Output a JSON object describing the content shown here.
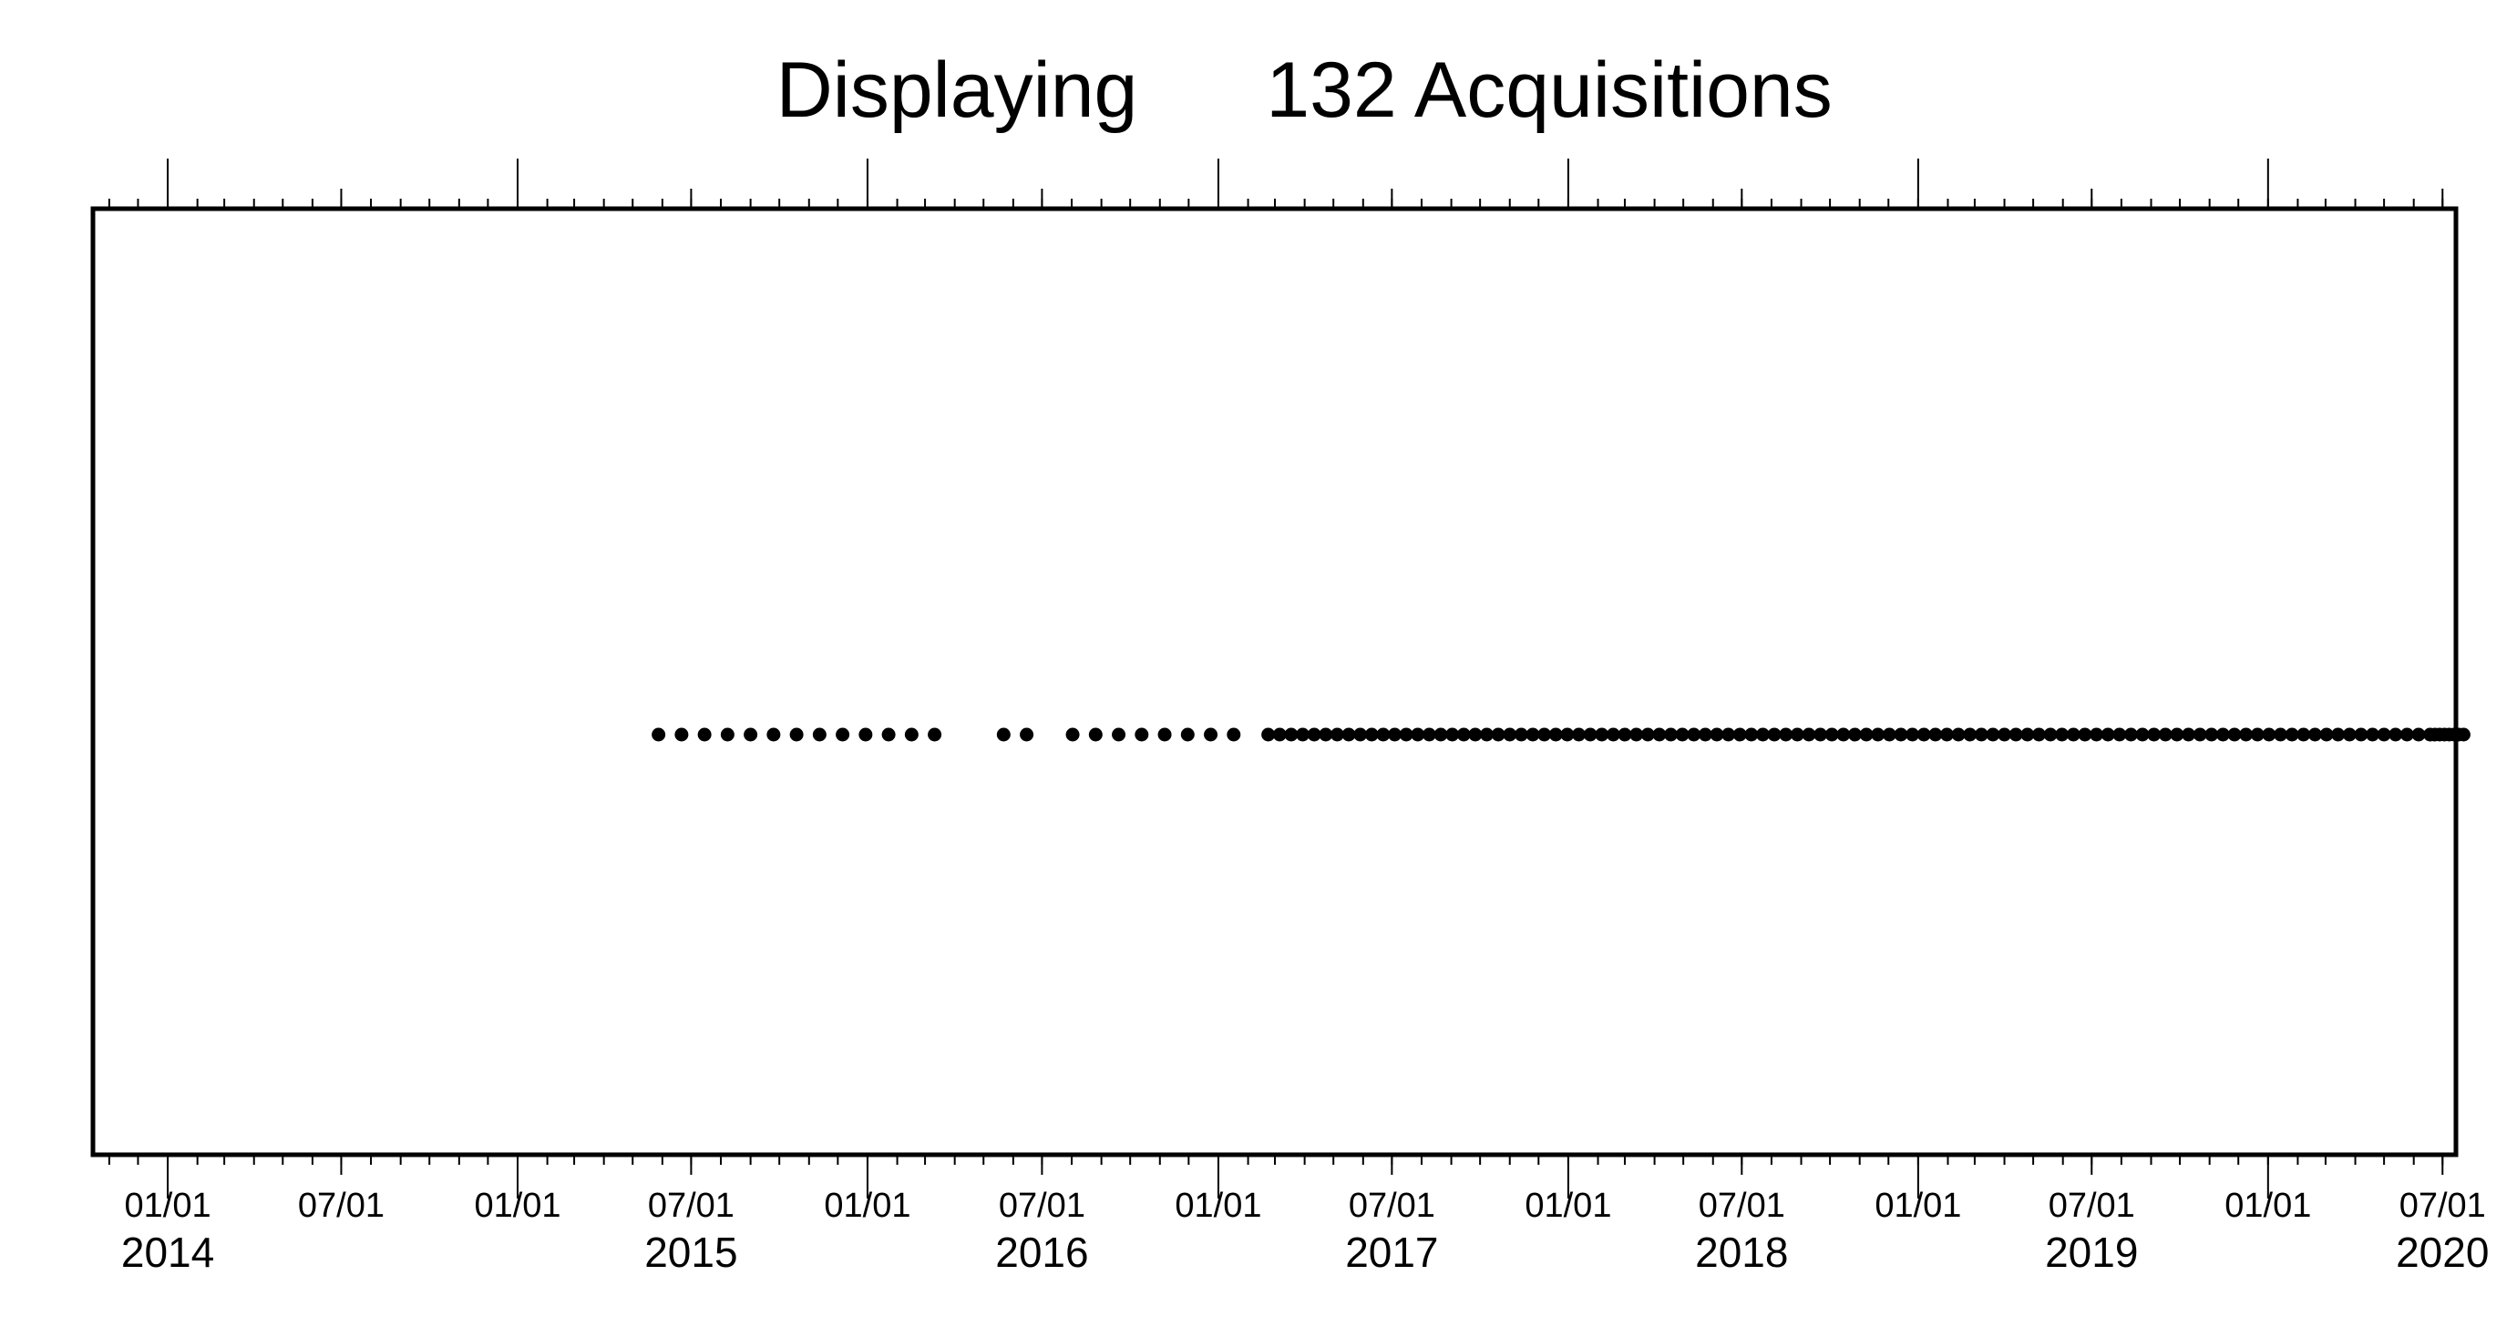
{
  "chart_data": {
    "type": "scatter",
    "title_parts": [
      "Displaying",
      "132 Acquisitions"
    ],
    "xlabel": "",
    "ylabel": "",
    "xlim": [
      "2013-10-15",
      "2020-07-15"
    ],
    "axis_type": "date",
    "grid": false,
    "legend": "none",
    "x_month_ticks": [
      {
        "date": "2014-01-01",
        "label": "01/01"
      },
      {
        "date": "2014-07-01",
        "label": "07/01"
      },
      {
        "date": "2015-01-01",
        "label": "01/01"
      },
      {
        "date": "2015-07-01",
        "label": "07/01"
      },
      {
        "date": "2016-01-01",
        "label": "01/01"
      },
      {
        "date": "2016-07-01",
        "label": "07/01"
      },
      {
        "date": "2017-01-01",
        "label": "01/01"
      },
      {
        "date": "2017-07-01",
        "label": "07/01"
      },
      {
        "date": "2018-01-01",
        "label": "01/01"
      },
      {
        "date": "2018-07-01",
        "label": "07/01"
      },
      {
        "date": "2019-01-01",
        "label": "01/01"
      },
      {
        "date": "2019-07-01",
        "label": "07/01"
      },
      {
        "date": "2020-01-01",
        "label": "01/01"
      },
      {
        "date": "2020-07-01",
        "label": "07/01"
      }
    ],
    "x_year_labels": [
      {
        "date": "2014-01-01",
        "label": "2014"
      },
      {
        "date": "2015-07-01",
        "label": "2015"
      },
      {
        "date": "2016-07-01",
        "label": "2016"
      },
      {
        "date": "2017-07-01",
        "label": "2017"
      },
      {
        "date": "2018-07-01",
        "label": "2018"
      },
      {
        "date": "2019-07-01",
        "label": "2019"
      },
      {
        "date": "2020-07-01",
        "label": "2020"
      }
    ],
    "point_color": "#000000",
    "acquisitions": [
      "2015-05-28",
      "2015-06-21",
      "2015-07-15",
      "2015-08-08",
      "2015-09-01",
      "2015-09-25",
      "2015-10-19",
      "2015-11-12",
      "2015-12-06",
      "2015-12-30",
      "2016-01-23",
      "2016-02-16",
      "2016-03-11",
      "2016-05-22",
      "2016-06-15",
      "2016-08-02",
      "2016-08-26",
      "2016-09-19",
      "2016-10-13",
      "2016-11-06",
      "2016-11-30",
      "2016-12-24",
      "2017-01-17",
      "2017-02-22",
      "2017-03-06",
      "2017-03-18",
      "2017-03-30",
      "2017-04-11",
      "2017-04-23",
      "2017-05-05",
      "2017-05-17",
      "2017-05-29",
      "2017-06-10",
      "2017-06-22",
      "2017-07-04",
      "2017-07-16",
      "2017-07-28",
      "2017-08-09",
      "2017-08-21",
      "2017-09-02",
      "2017-09-14",
      "2017-09-26",
      "2017-10-08",
      "2017-10-20",
      "2017-11-01",
      "2017-11-13",
      "2017-11-25",
      "2017-12-07",
      "2017-12-19",
      "2017-12-31",
      "2018-01-12",
      "2018-01-24",
      "2018-02-05",
      "2018-02-17",
      "2018-03-01",
      "2018-03-13",
      "2018-03-25",
      "2018-04-06",
      "2018-04-18",
      "2018-04-30",
      "2018-05-12",
      "2018-05-24",
      "2018-06-05",
      "2018-06-17",
      "2018-06-29",
      "2018-07-11",
      "2018-07-23",
      "2018-08-04",
      "2018-08-16",
      "2018-08-28",
      "2018-09-09",
      "2018-09-21",
      "2018-10-03",
      "2018-10-15",
      "2018-10-27",
      "2018-11-08",
      "2018-11-20",
      "2018-12-02",
      "2018-12-14",
      "2018-12-26",
      "2019-01-07",
      "2019-01-19",
      "2019-01-31",
      "2019-02-12",
      "2019-02-24",
      "2019-03-08",
      "2019-03-20",
      "2019-04-01",
      "2019-04-13",
      "2019-04-25",
      "2019-05-07",
      "2019-05-19",
      "2019-05-31",
      "2019-06-12",
      "2019-06-24",
      "2019-07-06",
      "2019-07-18",
      "2019-07-30",
      "2019-08-11",
      "2019-08-23",
      "2019-09-04",
      "2019-09-16",
      "2019-09-28",
      "2019-10-10",
      "2019-10-22",
      "2019-11-03",
      "2019-11-15",
      "2019-11-27",
      "2019-12-09",
      "2019-12-21",
      "2020-01-02",
      "2020-01-14",
      "2020-01-26",
      "2020-02-07",
      "2020-02-19",
      "2020-03-02",
      "2020-03-14",
      "2020-03-26",
      "2020-04-07",
      "2020-04-19",
      "2020-05-01",
      "2020-05-13",
      "2020-05-25",
      "2020-06-06",
      "2020-06-18",
      "2020-06-23",
      "2020-06-28",
      "2020-07-03",
      "2020-07-08",
      "2020-07-13",
      "2020-07-18",
      "2020-07-23"
    ]
  }
}
